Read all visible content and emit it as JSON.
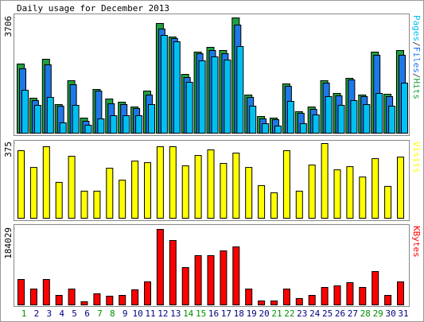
{
  "chart_data": [
    {
      "type": "grouped-bar",
      "title": "Daily usage for December 2013",
      "ylim": [
        0,
        3706
      ],
      "yticks": [
        3706
      ],
      "legend_separator": "/",
      "series": [
        {
          "name": "Hits",
          "color": "#20a040",
          "values": [
            2224,
            1125,
            2377,
            920,
            1687,
            486,
            1406,
            1099,
            997,
            843,
            1355,
            3527,
            3093,
            1891,
            2607,
            2760,
            2658,
            3706,
            1227,
            537,
            486,
            1585,
            690,
            843,
            1687,
            1278,
            1764,
            1227,
            2607,
            1252,
            2658
          ]
        },
        {
          "name": "Files",
          "color": "#1e78e8",
          "values": [
            2070,
            1048,
            2198,
            869,
            1559,
            383,
            1355,
            946,
            920,
            792,
            1227,
            3348,
            3042,
            1789,
            2556,
            2658,
            2556,
            3476,
            1150,
            460,
            435,
            1508,
            639,
            767,
            1610,
            1201,
            1712,
            1176,
            2505,
            1176,
            2505
          ]
        },
        {
          "name": "Pages",
          "color": "#00c0f0",
          "values": [
            1380,
            895,
            1150,
            332,
            895,
            256,
            460,
            562,
            562,
            562,
            920,
            3144,
            2939,
            1636,
            2326,
            2454,
            2351,
            2786,
            869,
            307,
            230,
            1022,
            307,
            588,
            1176,
            895,
            1048,
            920,
            1278,
            869,
            1610
          ]
        }
      ]
    },
    {
      "type": "bar",
      "ylim": [
        0,
        375
      ],
      "yticks": [
        375
      ],
      "series": [
        {
          "name": "Visits",
          "color": "#ffff00",
          "values": [
            339,
            255,
            359,
            180,
            311,
            136,
            136,
            251,
            191,
            287,
            279,
            359,
            359,
            263,
            315,
            343,
            275,
            327,
            255,
            164,
            128,
            339,
            136,
            267,
            375,
            243,
            259,
            207,
            299,
            160,
            307
          ]
        }
      ]
    },
    {
      "type": "bar",
      "ylim": [
        0,
        184029
      ],
      "yticks": [
        184029
      ],
      "categories": [
        "1",
        "2",
        "3",
        "4",
        "5",
        "6",
        "7",
        "8",
        "9",
        "10",
        "11",
        "12",
        "13",
        "14",
        "15",
        "16",
        "17",
        "18",
        "19",
        "20",
        "21",
        "22",
        "23",
        "24",
        "25",
        "26",
        "27",
        "28",
        "29",
        "30",
        "31"
      ],
      "category_colors": [
        "#009000",
        "#000080",
        "#000080",
        "#000080",
        "#000080",
        "#000080",
        "#009000",
        "#009000",
        "#000080",
        "#000080",
        "#000080",
        "#000080",
        "#000080",
        "#009000",
        "#009000",
        "#000080",
        "#000080",
        "#000080",
        "#000080",
        "#000080",
        "#009000",
        "#009000",
        "#000080",
        "#000080",
        "#000080",
        "#000080",
        "#000080",
        "#009000",
        "#009000",
        "#000080",
        "#000080"
      ],
      "series": [
        {
          "name": "KBytes",
          "color": "#ff0000",
          "values": [
            61983,
            38740,
            61983,
            23244,
            38740,
            7748,
            27118,
            21307,
            23244,
            36803,
            56173,
            184029,
            156897,
            91039,
            120094,
            120094,
            131716,
            141401,
            38740,
            9685,
            9685,
            38740,
            15496,
            23244,
            42614,
            46488,
            54236,
            42614,
            81354,
            23244,
            56173
          ]
        }
      ]
    }
  ]
}
